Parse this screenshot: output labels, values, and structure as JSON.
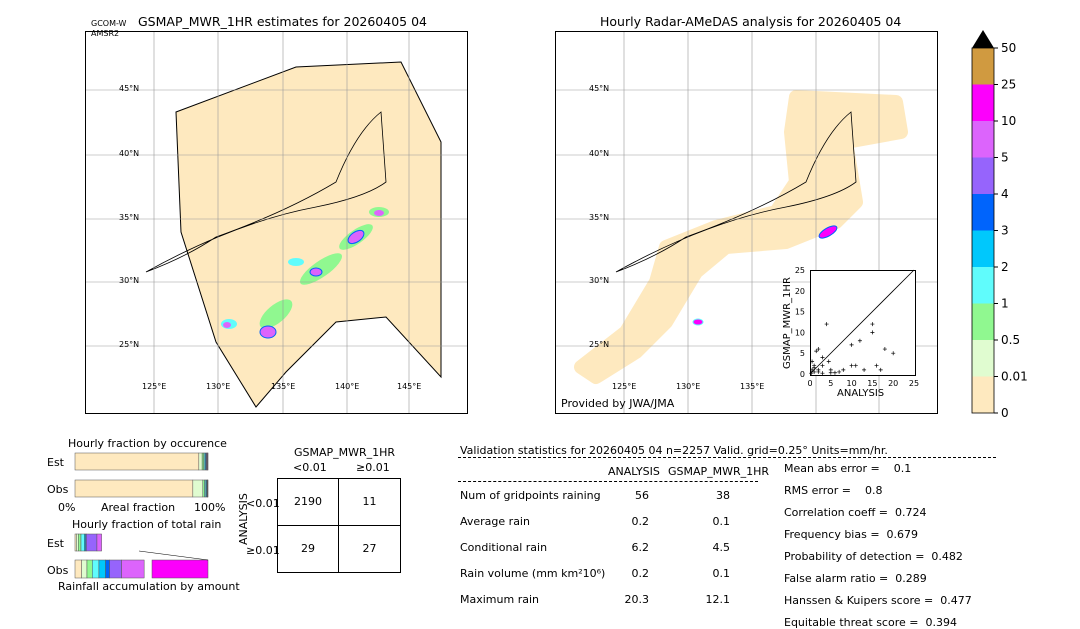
{
  "left_map": {
    "title": "GSMAP_MWR_1HR estimates for 20260405 04",
    "sat_label1": "GCOM-W",
    "sat_label2": "AMSR2",
    "lat_labels": [
      "45°N",
      "40°N",
      "35°N",
      "30°N",
      "25°N"
    ],
    "lon_labels": [
      "125°E",
      "130°E",
      "135°E",
      "140°E",
      "145°E"
    ]
  },
  "right_map": {
    "title": "Hourly Radar-AMeDAS analysis for 20260405 04",
    "credit": "Provided by JWA/JMA",
    "lat_labels": [
      "45°N",
      "40°N",
      "35°N",
      "30°N",
      "25°N"
    ],
    "lon_labels": [
      "125°E",
      "130°E",
      "135°E"
    ]
  },
  "colorbar": {
    "labels": [
      "0",
      "0.01",
      "0.5",
      "1",
      "2",
      "3",
      "4",
      "5",
      "10",
      "25",
      "50"
    ],
    "colors": [
      "#fee9bf",
      "#e0fcd0",
      "#90f890",
      "#60fcfc",
      "#00c8fc",
      "#0064fc",
      "#9664fc",
      "#dc64fc",
      "#fc00fc",
      "#d09a40"
    ],
    "extend_color": "#000000"
  },
  "chart_data": [
    {
      "type": "scatter",
      "xlabel": "ANALYSIS",
      "ylabel": "GSMAP_MWR_1HR",
      "xlim": [
        0,
        25
      ],
      "ylim": [
        0,
        25
      ],
      "xticks": [
        "0",
        "5",
        "10",
        "15",
        "20",
        "25"
      ],
      "yticks": [
        "0",
        "5",
        "10",
        "15",
        "20",
        "25"
      ],
      "points": [
        [
          0.3,
          0.2
        ],
        [
          0.5,
          1
        ],
        [
          1,
          0.5
        ],
        [
          1,
          2
        ],
        [
          1.5,
          5.5
        ],
        [
          2,
          6
        ],
        [
          2,
          0.5
        ],
        [
          3,
          2
        ],
        [
          3,
          4
        ],
        [
          0.5,
          3
        ],
        [
          4,
          12
        ],
        [
          4.5,
          3
        ],
        [
          5,
          1
        ],
        [
          5,
          0.3
        ],
        [
          7,
          0.5
        ],
        [
          8,
          1
        ],
        [
          10,
          7
        ],
        [
          10,
          2
        ],
        [
          11,
          2
        ],
        [
          12,
          8
        ],
        [
          13,
          1
        ],
        [
          15,
          12
        ],
        [
          15,
          10
        ],
        [
          16,
          2
        ],
        [
          18,
          6
        ],
        [
          20,
          5
        ],
        [
          17,
          1
        ],
        [
          1,
          1.5
        ],
        [
          2,
          1
        ],
        [
          6,
          0.3
        ],
        [
          3,
          0.2
        ]
      ]
    },
    {
      "type": "bar",
      "title": "Hourly fraction by occurence",
      "xlabel": "Areal fraction",
      "x_min_label": "0%",
      "x_max_label": "100%",
      "categories": [
        "Est",
        "Obs"
      ],
      "series": [
        {
          "values_percent_est": [
            93.1,
            2.5,
            1.2,
            0.8,
            0.6,
            0.6,
            0.4,
            0.4,
            0.3,
            0.1
          ]
        },
        {
          "values_percent_obs": [
            88.6,
            7.5,
            1.3,
            0.9,
            0.6,
            0.4,
            0.3,
            0.2,
            0.1,
            0.1
          ]
        }
      ]
    },
    {
      "type": "bar",
      "title": "Hourly fraction of total rain",
      "xlabel": "Rainfall accumulation by amount",
      "categories": [
        "Est",
        "Obs"
      ],
      "series": [
        {
          "values_percent_est": [
            1,
            1.5,
            2,
            2.5,
            1,
            0.5,
            8,
            3.5,
            0,
            0
          ]
        },
        {
          "values_percent_obs": [
            5,
            4,
            4,
            5,
            5,
            3,
            9,
            17,
            0,
            0
          ]
        }
      ]
    }
  ],
  "occurrence": {
    "title": "Hourly fraction by occurence",
    "est": "Est",
    "obs": "Obs",
    "xlabel": "Areal fraction",
    "x0": "0%",
    "x1": "100%"
  },
  "totalrain": {
    "title": "Hourly fraction of total rain",
    "est": "Est",
    "obs": "Obs",
    "xlabel": "Rainfall accumulation by amount"
  },
  "contingency": {
    "col_title": "GSMAP_MWR_1HR",
    "col1": "<0.01",
    "col2": "≥0.01",
    "row_title": "ANALYSIS",
    "row1": "<0.01",
    "row2": "≥0.01",
    "cells": [
      [
        "2190",
        "11"
      ],
      [
        "29",
        "27"
      ]
    ]
  },
  "stats": {
    "header": "Validation statistics for 20260405 04  n=2257 Valid. grid=0.25° Units=mm/hr.",
    "col1": "ANALYSIS",
    "col2": "GSMAP_MWR_1HR",
    "rows": [
      {
        "label": "Num of gridpoints raining",
        "a": "56",
        "g": "38"
      },
      {
        "label": "Average rain",
        "a": "0.2",
        "g": "0.1"
      },
      {
        "label": "Conditional rain",
        "a": "6.2",
        "g": "4.5"
      },
      {
        "label": "Rain volume (mm km²10⁶)",
        "a": "0.2",
        "g": "0.1"
      },
      {
        "label": "Maximum rain",
        "a": "20.3",
        "g": "12.1"
      }
    ],
    "scores": [
      "Mean abs error =    0.1",
      "RMS error =    0.8",
      "Correlation coeff =  0.724",
      "Frequency bias =  0.679",
      "Probability of detection =  0.482",
      "False alarm ratio =  0.289",
      "Hanssen & Kuipers score =  0.477",
      "Equitable threat score =  0.394"
    ]
  }
}
